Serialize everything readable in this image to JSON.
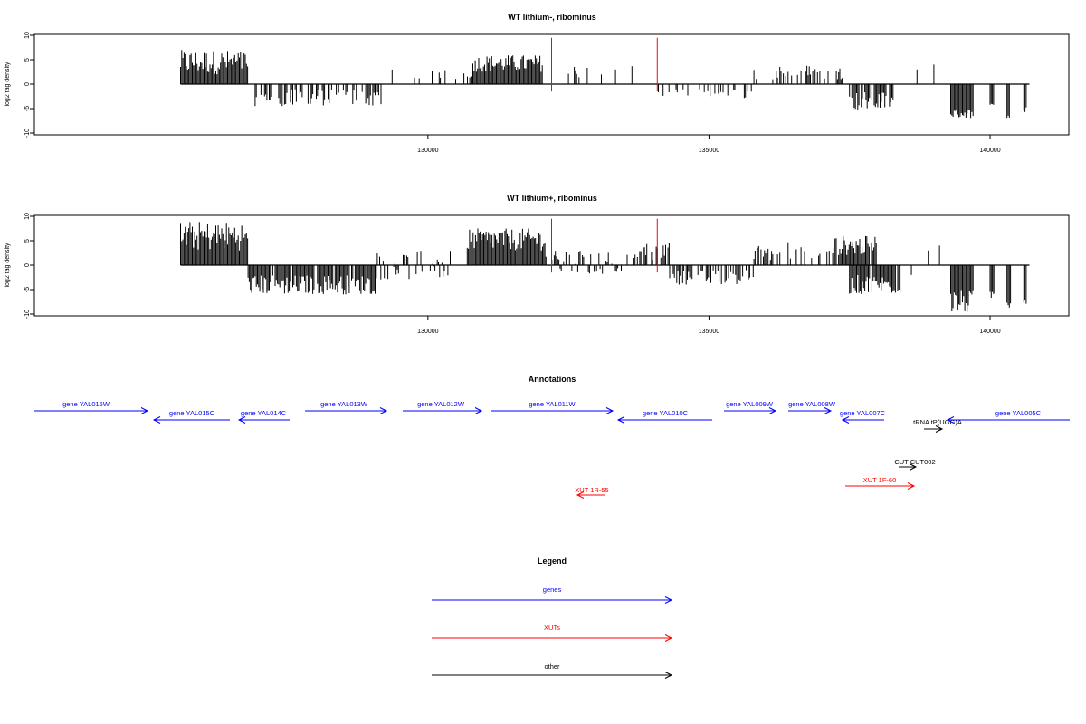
{
  "chart_data": [
    {
      "type": "bar",
      "title": "WT lithium-, ribominus",
      "ylabel": "log2 tag density",
      "xlim": [
        123000,
        141400
      ],
      "ylim": [
        -10,
        10
      ],
      "xticks": [
        130000,
        135000,
        140000
      ],
      "xtick_labels": [
        "130000",
        "135000",
        "140000"
      ],
      "yticks": [
        -10,
        -5,
        0,
        5,
        10
      ],
      "ytick_labels": [
        "-10",
        "-5",
        "0",
        "5",
        "10"
      ],
      "x_range": [
        125600,
        140700
      ],
      "blocks": [
        {
          "x": [
            125600,
            126800
          ],
          "min": 2,
          "max": 7,
          "density": 1.0
        },
        {
          "x": [
            126800,
            129200
          ],
          "min": -4.5,
          "max": -1,
          "density": 0.5
        },
        {
          "x": [
            129300,
            130800
          ],
          "min": 1,
          "max": 3,
          "density": 0.15
        },
        {
          "x": [
            130800,
            132050
          ],
          "min": 2.5,
          "max": 6,
          "density": 1.0
        },
        {
          "x": [
            132500,
            134100
          ],
          "min": 1,
          "max": 4,
          "density": 0.12
        },
        {
          "x": [
            134100,
            135800
          ],
          "min": -3,
          "max": -1,
          "density": 0.35
        },
        {
          "x": [
            135800,
            137400
          ],
          "min": 1,
          "max": 4,
          "density": 0.3
        },
        {
          "x": [
            137500,
            138300
          ],
          "min": -5.5,
          "max": -1.5,
          "density": 0.8
        },
        {
          "x": [
            139300,
            139700
          ],
          "min": -7,
          "max": -5,
          "density": 1.0
        },
        {
          "x": [
            140000,
            140080
          ],
          "min": -5,
          "max": -4,
          "density": 1.0
        },
        {
          "x": [
            140300,
            140360
          ],
          "min": -7,
          "max": -5,
          "density": 1.0
        },
        {
          "x": [
            140600,
            140650
          ],
          "min": -6,
          "max": -4,
          "density": 1.0
        }
      ],
      "spikes": [
        {
          "x": 138700,
          "value": 3
        },
        {
          "x": 139000,
          "value": 4
        }
      ],
      "markers": [
        132200,
        134080
      ],
      "marker_color": "#ff0000"
    },
    {
      "type": "bar",
      "title": "WT lithium+, ribominus",
      "ylabel": "log2 tag density",
      "xlim": [
        123000,
        141400
      ],
      "ylim": [
        -10,
        10
      ],
      "xticks": [
        130000,
        135000,
        140000
      ],
      "xtick_labels": [
        "130000",
        "135000",
        "140000"
      ],
      "yticks": [
        -10,
        -5,
        0,
        5,
        10
      ],
      "ytick_labels": [
        "-10",
        "-5",
        "0",
        "5",
        "10"
      ],
      "x_range": [
        125600,
        140700
      ],
      "blocks": [
        {
          "x": [
            125600,
            126800
          ],
          "min": 3,
          "max": 9,
          "density": 1.0
        },
        {
          "x": [
            126800,
            129100
          ],
          "min": -6,
          "max": -2,
          "density": 0.9
        },
        {
          "x": [
            129100,
            130400
          ],
          "min": -3,
          "max": 3,
          "density": 0.5
        },
        {
          "x": [
            130700,
            132100
          ],
          "min": 3,
          "max": 7.5,
          "density": 1.0
        },
        {
          "x": [
            132100,
            133600
          ],
          "min": -2,
          "max": 3,
          "density": 0.4
        },
        {
          "x": [
            133600,
            134300
          ],
          "min": 1,
          "max": 5,
          "density": 0.7
        },
        {
          "x": [
            134300,
            135800
          ],
          "min": -4,
          "max": -1,
          "density": 0.6
        },
        {
          "x": [
            135800,
            137200
          ],
          "min": 1,
          "max": 5,
          "density": 0.5
        },
        {
          "x": [
            137200,
            138000
          ],
          "min": 2,
          "max": 6,
          "density": 0.9
        },
        {
          "x": [
            137500,
            138400
          ],
          "min": -6,
          "max": -2,
          "density": 0.9
        },
        {
          "x": [
            139300,
            139700
          ],
          "min": -10,
          "max": -5,
          "density": 1.0
        },
        {
          "x": [
            140000,
            140100
          ],
          "min": -7,
          "max": -5,
          "density": 1.0
        },
        {
          "x": [
            140300,
            140380
          ],
          "min": -9,
          "max": -6,
          "density": 1.0
        },
        {
          "x": [
            140600,
            140650
          ],
          "min": -8,
          "max": -6,
          "density": 1.0
        }
      ],
      "spikes": [
        {
          "x": 138900,
          "value": 3
        },
        {
          "x": 139100,
          "value": 4
        },
        {
          "x": 138600,
          "value": -2
        }
      ],
      "markers": [
        132200,
        134080
      ],
      "marker_color": "#ff0000"
    }
  ],
  "annotations": {
    "title": "Annotations",
    "items": [
      {
        "label": "gene YAL016W",
        "color": "#0000ff",
        "dir": "right"
      },
      {
        "label": "gene YAL015C",
        "color": "#0000ff",
        "dir": "left"
      },
      {
        "label": "gene YAL014C",
        "color": "#0000ff",
        "dir": "left"
      },
      {
        "label": "gene YAL013W",
        "color": "#0000ff",
        "dir": "right"
      },
      {
        "label": "gene YAL012W",
        "color": "#0000ff",
        "dir": "right"
      },
      {
        "label": "gene YAL011W",
        "color": "#0000ff",
        "dir": "right"
      },
      {
        "label": "gene YAL010C",
        "color": "#0000ff",
        "dir": "left"
      },
      {
        "label": "gene YAL009W",
        "color": "#0000ff",
        "dir": "right"
      },
      {
        "label": "gene YAL008W",
        "color": "#0000ff",
        "dir": "right"
      },
      {
        "label": "gene YAL007C",
        "color": "#0000ff",
        "dir": "left"
      },
      {
        "label": "tRNA tP(UGG)A",
        "color": "#000000",
        "dir": "right"
      },
      {
        "label": "gene YAL005C",
        "color": "#0000ff",
        "dir": "left"
      },
      {
        "label": "CUT CUT002",
        "color": "#000000",
        "dir": "right"
      },
      {
        "label": "XUT 1R-55",
        "color": "#ff0000",
        "dir": "left"
      },
      {
        "label": "XUT 1F-60",
        "color": "#ff0000",
        "dir": "right"
      }
    ]
  },
  "legend": {
    "title": "Legend",
    "items": [
      {
        "label": "genes",
        "color": "#0000ff"
      },
      {
        "label": "XUTs",
        "color": "#ff0000"
      },
      {
        "label": "other",
        "color": "#000000"
      }
    ]
  }
}
